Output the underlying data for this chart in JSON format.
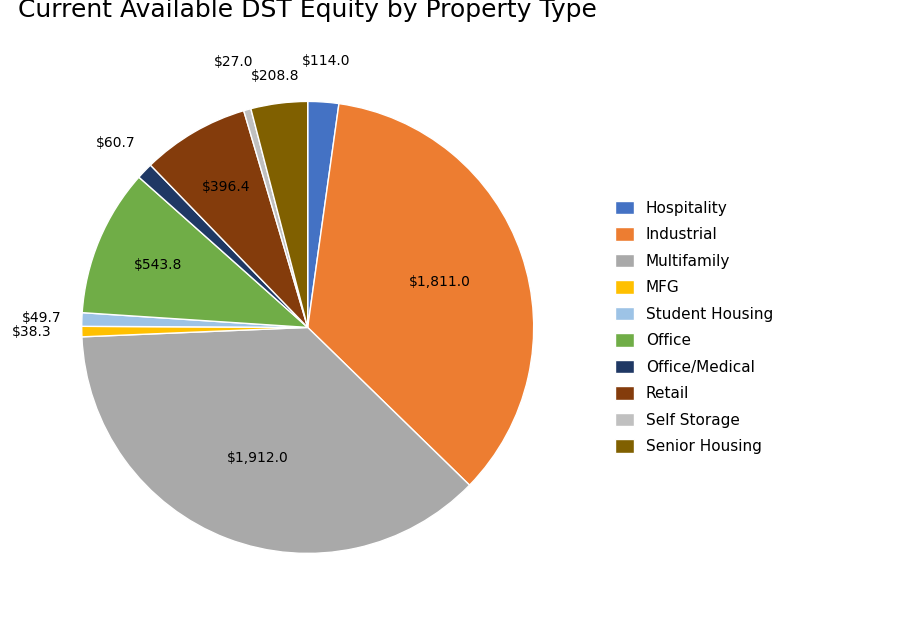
{
  "title": "Current Available DST Equity by Property Type",
  "sectors": [
    "Hospitality",
    "Industrial",
    "Multifamily",
    "MFG",
    "Student Housing",
    "Office",
    "Office/Medical",
    "Retail",
    "Self Storage",
    "Senior Housing"
  ],
  "values": [
    114.0,
    1811.0,
    1912.0,
    38.3,
    49.7,
    543.8,
    60.7,
    396.4,
    27.0,
    208.8
  ],
  "colors": [
    "#4472C4",
    "#ED7D31",
    "#A9A9A9",
    "#FFC000",
    "#9DC3E6",
    "#70AD47",
    "#1F3864",
    "#843C0C",
    "#C0C0C0",
    "#806000"
  ],
  "labels": [
    "$114.0",
    "$1,811.0",
    "$1,912.0",
    "$38.3",
    "$49.7",
    "$543.8",
    "$60.7",
    "$396.4",
    "$27.0",
    "$208.8"
  ],
  "title_fontsize": 18,
  "label_fontsize": 10,
  "legend_fontsize": 11
}
